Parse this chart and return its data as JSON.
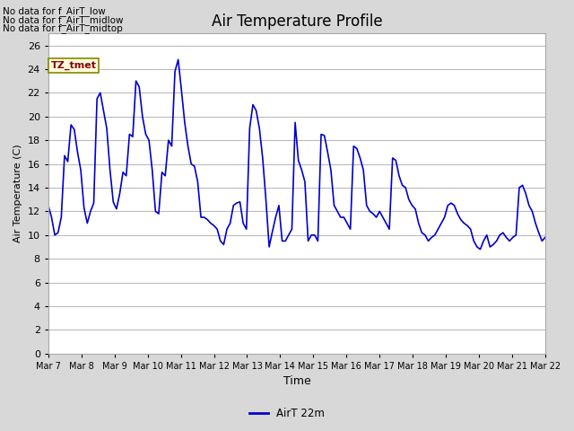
{
  "title": "Air Temperature Profile",
  "xlabel": "Time",
  "ylabel": "Air Temperature (C)",
  "line_color": "#0000cc",
  "line_width": 1.2,
  "ylim": [
    0,
    27
  ],
  "yticks": [
    0,
    2,
    4,
    6,
    8,
    10,
    12,
    14,
    16,
    18,
    20,
    22,
    24,
    26
  ],
  "bg_color": "#d8d8d8",
  "plot_bg_color": "#ffffff",
  "grid_color": "#bbbbbb",
  "annotations": [
    "No data for f_AirT_low",
    "No data for f_AirT_midlow",
    "No data for f_AirT_midtop"
  ],
  "tz_label": "TZ_tmet",
  "legend_label": "AirT 22m",
  "x_tick_labels": [
    "Mar 7",
    "Mar 8",
    "Mar 9",
    "Mar 10",
    "Mar 11",
    "Mar 12",
    "Mar 13",
    "Mar 14",
    "Mar 15",
    "Mar 16",
    "Mar 17",
    "Mar 18",
    "Mar 19",
    "Mar 20",
    "Mar 21",
    "Mar 22"
  ],
  "temperatures": [
    12.5,
    11.5,
    10.0,
    10.2,
    11.5,
    16.7,
    16.2,
    19.3,
    18.9,
    17.0,
    15.5,
    12.3,
    11.0,
    12.0,
    12.7,
    21.5,
    22.0,
    20.5,
    19.0,
    15.5,
    12.8,
    12.2,
    13.5,
    15.3,
    15.0,
    18.5,
    18.3,
    23.0,
    22.5,
    20.0,
    18.5,
    18.0,
    15.5,
    12.0,
    11.8,
    15.3,
    15.0,
    18.0,
    17.5,
    23.8,
    24.8,
    22.2,
    19.5,
    17.5,
    16.0,
    15.8,
    14.5,
    11.5,
    11.5,
    11.3,
    11.0,
    10.8,
    10.5,
    9.5,
    9.2,
    10.5,
    11.0,
    12.5,
    12.7,
    12.8,
    11.0,
    10.5,
    19.0,
    21.0,
    20.5,
    19.0,
    16.5,
    13.0,
    9.0,
    10.3,
    11.5,
    12.5,
    9.5,
    9.5,
    10.0,
    10.5,
    19.5,
    16.3,
    15.5,
    14.5,
    9.5,
    10.0,
    10.0,
    9.5,
    18.5,
    18.4,
    17.0,
    15.5,
    12.5,
    12.0,
    11.5,
    11.5,
    11.0,
    10.5,
    17.5,
    17.3,
    16.5,
    15.5,
    12.5,
    12.0,
    11.8,
    11.5,
    12.0,
    11.5,
    11.0,
    10.5,
    16.5,
    16.3,
    15.0,
    14.2,
    14.0,
    13.0,
    12.5,
    12.2,
    11.0,
    10.2,
    10.0,
    9.5,
    9.8,
    10.0,
    10.5,
    11.0,
    11.5,
    12.5,
    12.7,
    12.5,
    11.8,
    11.3,
    11.0,
    10.8,
    10.5,
    9.5,
    9.0,
    8.8,
    9.5,
    10.0,
    9.0,
    9.2,
    9.5,
    10.0,
    10.2,
    9.8,
    9.5,
    9.8,
    10.0,
    14.0,
    14.2,
    13.5,
    12.5,
    12.0,
    11.0,
    10.2,
    9.5,
    9.8
  ]
}
